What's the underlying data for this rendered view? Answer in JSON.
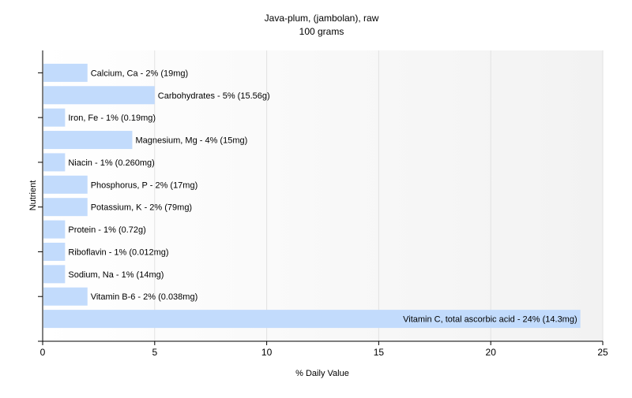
{
  "chart_data": {
    "type": "bar",
    "orientation": "horizontal",
    "title": "Java-plum, (jambolan), raw",
    "subtitle": "100 grams",
    "xlabel": "% Daily Value",
    "ylabel": "Nutrient",
    "xlim": [
      0,
      25
    ],
    "xticks": [
      0,
      5,
      10,
      15,
      20,
      25
    ],
    "grid": true,
    "legend": false,
    "colors": {
      "bar": "#c2dbfc",
      "grid": "#e2e2e2",
      "axis": "#000000",
      "background_gradient_end": "#f2f2f2"
    },
    "categories": [
      "Calcium, Ca",
      "Carbohydrates",
      "Iron, Fe",
      "Magnesium, Mg",
      "Niacin",
      "Phosphorus, P",
      "Potassium, K",
      "Protein",
      "Riboflavin",
      "Sodium, Na",
      "Vitamin B-6",
      "Vitamin C, total ascorbic acid"
    ],
    "values": [
      2,
      5,
      1,
      4,
      1,
      2,
      2,
      1,
      1,
      1,
      2,
      24
    ],
    "data_labels": [
      "Calcium, Ca - 2% (19mg)",
      "Carbohydrates - 5% (15.56g)",
      "Iron, Fe - 1% (0.19mg)",
      "Magnesium, Mg - 4% (15mg)",
      "Niacin - 1% (0.260mg)",
      "Phosphorus, P - 2% (17mg)",
      "Potassium, K - 2% (79mg)",
      "Protein - 1% (0.72g)",
      "Riboflavin - 1% (0.012mg)",
      "Sodium, Na - 1% (14mg)",
      "Vitamin B-6 - 2% (0.038mg)",
      "Vitamin C, total ascorbic acid - 24% (14.3mg)"
    ]
  }
}
